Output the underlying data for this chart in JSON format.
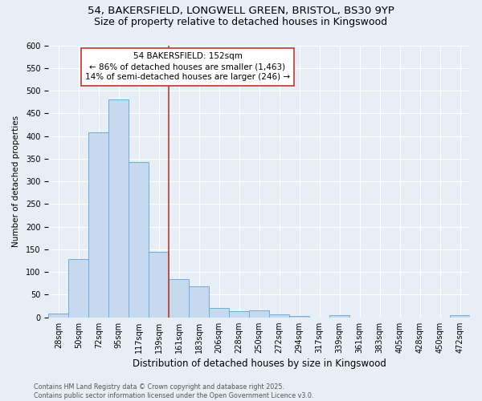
{
  "title_line1": "54, BAKERSFIELD, LONGWELL GREEN, BRISTOL, BS30 9YP",
  "title_line2": "Size of property relative to detached houses in Kingswood",
  "xlabel": "Distribution of detached houses by size in Kingswood",
  "ylabel": "Number of detached properties",
  "categories": [
    "28sqm",
    "50sqm",
    "72sqm",
    "95sqm",
    "117sqm",
    "139sqm",
    "161sqm",
    "183sqm",
    "206sqm",
    "228sqm",
    "250sqm",
    "272sqm",
    "294sqm",
    "317sqm",
    "339sqm",
    "361sqm",
    "383sqm",
    "405sqm",
    "428sqm",
    "450sqm",
    "472sqm"
  ],
  "values": [
    8,
    128,
    408,
    480,
    343,
    145,
    85,
    68,
    20,
    13,
    15,
    7,
    3,
    0,
    4,
    0,
    0,
    0,
    0,
    0,
    4
  ],
  "bar_color": "#c6d9ee",
  "bar_edge_color": "#6aaed6",
  "vline_index": 6,
  "vline_color": "#c0392b",
  "annotation_line1": "54 BAKERSFIELD: 152sqm",
  "annotation_line2": "← 86% of detached houses are smaller (1,463)",
  "annotation_line3": "14% of semi-detached houses are larger (246) →",
  "annotation_box_color": "#ffffff",
  "annotation_box_edge": "#c0392b",
  "ylim": [
    0,
    600
  ],
  "yticks": [
    0,
    50,
    100,
    150,
    200,
    250,
    300,
    350,
    400,
    450,
    500,
    550,
    600
  ],
  "background_color": "#e8eef5",
  "footer_text": "Contains HM Land Registry data © Crown copyright and database right 2025.\nContains public sector information licensed under the Open Government Licence v3.0.",
  "title_fontsize": 9.5,
  "subtitle_fontsize": 9.0,
  "xlabel_fontsize": 8.5,
  "ylabel_fontsize": 7.5,
  "tick_fontsize": 7.0,
  "annotation_fontsize": 7.5,
  "footer_fontsize": 5.8
}
